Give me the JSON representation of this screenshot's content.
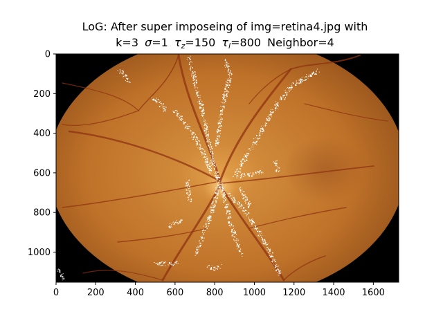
{
  "figure": {
    "title_line1": "LoG: After super imposeing of img=retina4.jpg with",
    "title_line2": {
      "k": "k=3",
      "sigma_symbol": "σ",
      "sigma_value": "=1",
      "tau": "τ",
      "tau_z_sub": "z",
      "tau_z_value": "=150",
      "tau_l_sub": "l",
      "tau_l_value": "=800",
      "neighbor": "Neighbor=4"
    }
  },
  "image": {
    "description_name": "retina fundus photograph with white edge overlay",
    "colors": {
      "fundus_center": "#d08a3a",
      "fundus_mid": "#c0742a",
      "fundus_edge": "#8a4a18",
      "vessel": "#8f3312",
      "overlay": "#ffffff",
      "background": "#000000"
    }
  },
  "axes": {
    "x_range": [
      0,
      1728
    ],
    "y_range": [
      1152,
      0
    ],
    "x_ticks": [
      "0",
      "200",
      "400",
      "600",
      "800",
      "1000",
      "1200",
      "1400",
      "1600"
    ],
    "y_ticks": [
      "0",
      "200",
      "400",
      "600",
      "800",
      "1000"
    ]
  }
}
